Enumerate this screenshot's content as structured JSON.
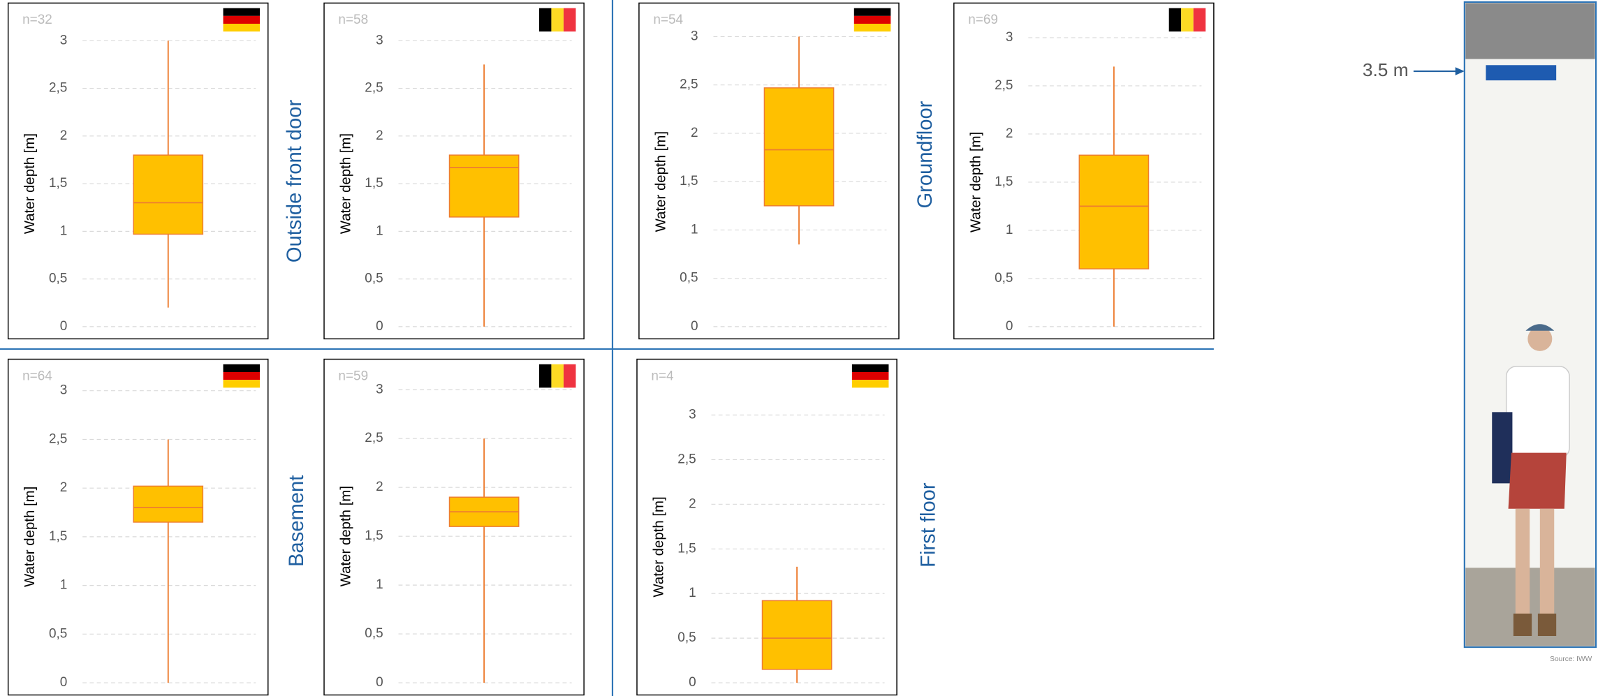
{
  "chart_data": [
    {
      "type": "box",
      "annotation": "n=32",
      "y_label": "Water depth [m]",
      "ylim": [
        0,
        3
      ],
      "yticks": [
        0,
        {
          "value": 0.5,
          "label": "0,5"
        },
        1,
        {
          "value": 1.5,
          "label": "1,5"
        },
        2,
        {
          "value": 2.5,
          "label": "2,5"
        },
        3
      ],
      "grid": true,
      "color": "#ffc000",
      "line_color": "#ed7d31",
      "flag": {
        "colors": [
          "#000000",
          "#dd0000",
          "#ffce00"
        ],
        "stripes": "horizontal"
      },
      "box": {
        "min": 0.2,
        "q1": 0.97,
        "median": 1.3,
        "q3": 1.8,
        "max": 3
      }
    },
    {
      "type": "box",
      "annotation": "n=58",
      "y_label": "Water depth [m]",
      "ylim": [
        0,
        3
      ],
      "yticks": [
        0,
        {
          "value": 0.5,
          "label": "0,5"
        },
        1,
        {
          "value": 1.5,
          "label": "1,5"
        },
        2,
        {
          "value": 2.5,
          "label": "2,5"
        },
        3
      ],
      "grid": true,
      "color": "#ffc000",
      "line_color": "#ed7d31",
      "flag": {
        "colors": [
          "#000000",
          "#fdda24",
          "#ef3340"
        ],
        "stripes": "vertical"
      },
      "box": {
        "min": 0,
        "q1": 1.15,
        "median": 1.67,
        "q3": 1.8,
        "max": 2.75
      }
    },
    {
      "type": "box",
      "annotation": "n=54",
      "y_label": "Water depth [m]",
      "ylim": [
        0,
        3
      ],
      "yticks": [
        0,
        {
          "value": 0.5,
          "label": "0,5"
        },
        1,
        {
          "value": 1.5,
          "label": "1,5"
        },
        2,
        {
          "value": 2.5,
          "label": "2,5"
        },
        3
      ],
      "grid": true,
      "color": "#ffc000",
      "line_color": "#ed7d31",
      "flag": {
        "colors": [
          "#000000",
          "#dd0000",
          "#ffce00"
        ],
        "stripes": "horizontal"
      },
      "box": {
        "min": 0.85,
        "q1": 1.25,
        "median": 1.83,
        "q3": 2.47,
        "max": 3
      }
    },
    {
      "type": "box",
      "annotation": "n=69",
      "y_label": "Water depth [m]",
      "ylim": [
        0,
        3
      ],
      "yticks": [
        0,
        {
          "value": 0.5,
          "label": "0,5"
        },
        1,
        {
          "value": 1.5,
          "label": "1,5"
        },
        2,
        {
          "value": 2.5,
          "label": "2,5"
        },
        3
      ],
      "grid": true,
      "color": "#ffc000",
      "line_color": "#ed7d31",
      "flag": {
        "colors": [
          "#000000",
          "#fdda24",
          "#ef3340"
        ],
        "stripes": "vertical"
      },
      "box": {
        "min": 0,
        "q1": 0.6,
        "median": 1.25,
        "q3": 1.78,
        "max": 2.7
      }
    },
    {
      "type": "box",
      "annotation": "n=64",
      "y_label": "Water depth [m]",
      "ylim": [
        0,
        3
      ],
      "yticks": [
        0,
        {
          "value": 0.5,
          "label": "0,5"
        },
        1,
        {
          "value": 1.5,
          "label": "1,5"
        },
        2,
        {
          "value": 2.5,
          "label": "2,5"
        },
        3
      ],
      "grid": true,
      "color": "#ffc000",
      "line_color": "#ed7d31",
      "flag": {
        "colors": [
          "#000000",
          "#dd0000",
          "#ffce00"
        ],
        "stripes": "horizontal"
      },
      "box": {
        "min": 0,
        "q1": 1.65,
        "median": 1.8,
        "q3": 2.02,
        "max": 2.5
      }
    },
    {
      "type": "box",
      "annotation": "n=59",
      "y_label": "Water depth [m]",
      "ylim": [
        0,
        3
      ],
      "yticks": [
        0,
        {
          "value": 0.5,
          "label": "0,5"
        },
        1,
        {
          "value": 1.5,
          "label": "1,5"
        },
        2,
        {
          "value": 2.5,
          "label": "2,5"
        },
        3
      ],
      "grid": true,
      "color": "#ffc000",
      "line_color": "#ed7d31",
      "flag": {
        "colors": [
          "#000000",
          "#fdda24",
          "#ef3340"
        ],
        "stripes": "vertical"
      },
      "box": {
        "min": 0,
        "q1": 1.6,
        "median": 1.75,
        "q3": 1.9,
        "max": 2.5
      }
    },
    {
      "type": "box",
      "annotation": "n=4",
      "y_label": "Water depth [m]",
      "ylim": [
        0,
        3.5
      ],
      "yticks": [
        0,
        {
          "value": 0.5,
          "label": "0,5"
        },
        1,
        {
          "value": 1.5,
          "label": "1,5"
        },
        2,
        {
          "value": 2.5,
          "label": "2,5"
        },
        3
      ],
      "grid": true,
      "color": "#ffc000",
      "line_color": "#ed7d31",
      "flag": {
        "colors": [
          "#000000",
          "#dd0000",
          "#ffce00"
        ],
        "stripes": "horizontal"
      },
      "box": {
        "min": 0,
        "q1": 0.15,
        "median": 0.5,
        "q3": 0.92,
        "max": 1.3
      }
    }
  ],
  "group_labels": [
    "Outside front door",
    "Groundfloor",
    "Basement",
    "First floor"
  ],
  "photo": {
    "height_label": "3.5 m",
    "source": "Source: IWW"
  }
}
